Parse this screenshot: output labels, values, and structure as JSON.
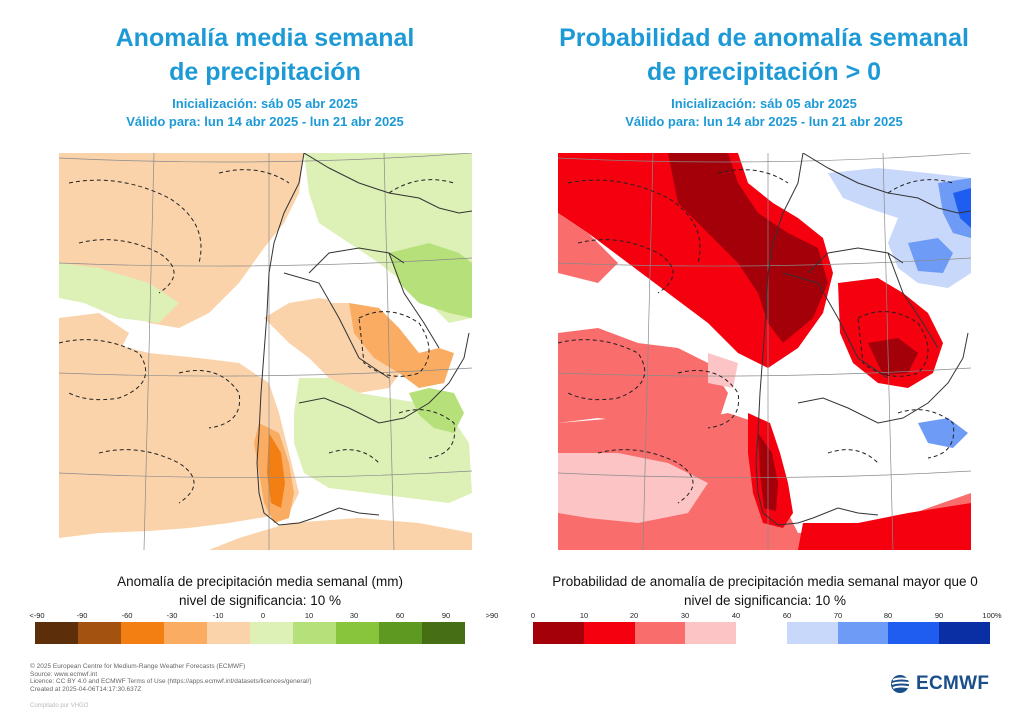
{
  "left": {
    "title_line1": "Anomalía media semanal",
    "title_line2": "de precipitación",
    "init": "Inicialización: sáb 05 abr 2025",
    "valid": "Válido para: lun 14 abr 2025 - lun 21 abr 2025",
    "legend_title": "Anomalía de precipitación media semanal (mm)",
    "legend_sig": "nivel de significancia: 10 %",
    "ticks": [
      "<-90",
      "-90",
      "-60",
      "-30",
      "-10",
      "0",
      "10",
      "30",
      "60",
      "90",
      ">90"
    ],
    "colors": [
      "#5c2f0a",
      "#a3520f",
      "#f37f12",
      "#f9ac62",
      "#fbd3ab",
      "#ddf0b6",
      "#b6e07a",
      "#88c53c",
      "#5e9a21",
      "#456e15"
    ]
  },
  "right": {
    "title_line1": "Probabilidad de anomalía semanal",
    "title_line2": "de precipitación > 0",
    "init": "Inicialización: sáb 05 abr 2025",
    "valid": "Válido para: lun 14 abr 2025 - lun 21 abr 2025",
    "legend_title": "Probabilidad de anomalía de precipitación media semanal mayor que 0",
    "legend_sig": "nivel de significancia: 10 %",
    "ticks": [
      "0",
      "10",
      "20",
      "30",
      "40",
      "60",
      "70",
      "80",
      "90",
      "100%"
    ],
    "colors": [
      "#a4000a",
      "#f4000f",
      "#f96d6d",
      "#fcc4c4",
      "#ffffff",
      "#c8d8fb",
      "#6e9bf5",
      "#1f5df0",
      "#0a2fa4"
    ]
  },
  "footer": [
    "© 2025 European Centre for Medium-Range Weather Forecasts (ECMWF)",
    "Source: www.ecmwf.int",
    "Licence: CC BY 4.0 and ECMWF Terms of Use (https://apps.ecmwf.int/datasets/licences/general/)",
    "Created at 2025-04-06T14:17:30.637Z"
  ],
  "compiled": "Compilado por VHGO",
  "logo": "ECMWF"
}
